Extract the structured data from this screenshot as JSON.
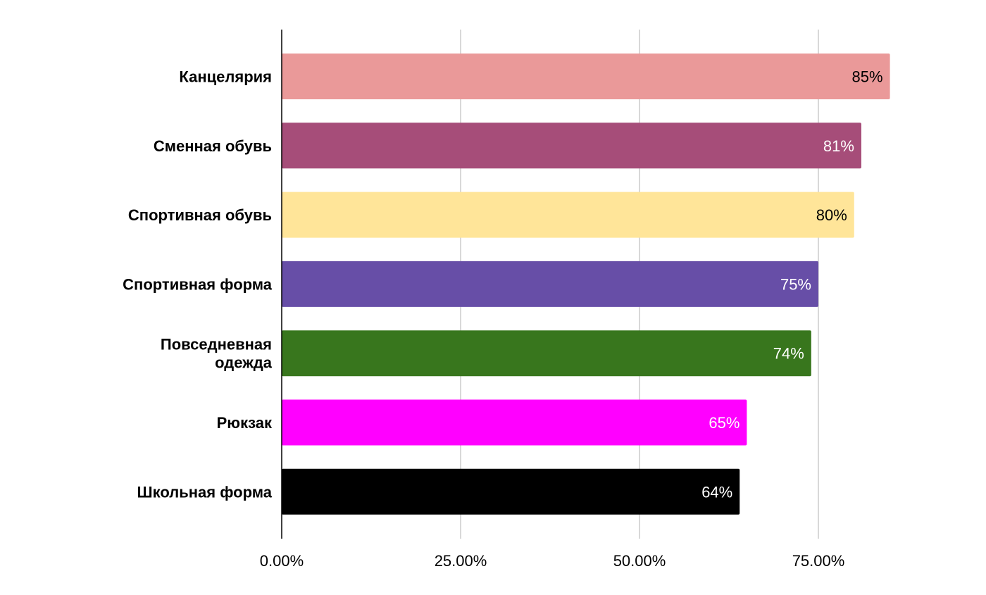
{
  "chart_data": {
    "type": "bar",
    "orientation": "horizontal",
    "categories": [
      [
        "Канцелярия"
      ],
      [
        "Сменная обувь"
      ],
      [
        "Спортивная обувь"
      ],
      [
        "Спортивная форма"
      ],
      [
        "Повседневная",
        "одежда"
      ],
      [
        "Рюкзак"
      ],
      [
        "Школьная форма"
      ]
    ],
    "values": [
      85,
      81,
      80,
      75,
      74,
      65,
      64
    ],
    "data_labels": [
      "85%",
      "81%",
      "80%",
      "75%",
      "74%",
      "65%",
      "64%"
    ],
    "bar_colors": [
      "#ea9999",
      "#a64d79",
      "#ffe599",
      "#674ea7",
      "#38761d",
      "#ff00ff",
      "#000000"
    ],
    "label_colors": [
      "#000000",
      "#ffffff",
      "#000000",
      "#ffffff",
      "#ffffff",
      "#ffffff",
      "#ffffff"
    ],
    "x_ticks": [
      0,
      25,
      50,
      75
    ],
    "x_tick_labels": [
      "0.00%",
      "25.00%",
      "50.00%",
      "75.00%"
    ],
    "xlim": [
      0,
      100
    ],
    "grid": true,
    "title": "",
    "xlabel": "",
    "ylabel": ""
  }
}
